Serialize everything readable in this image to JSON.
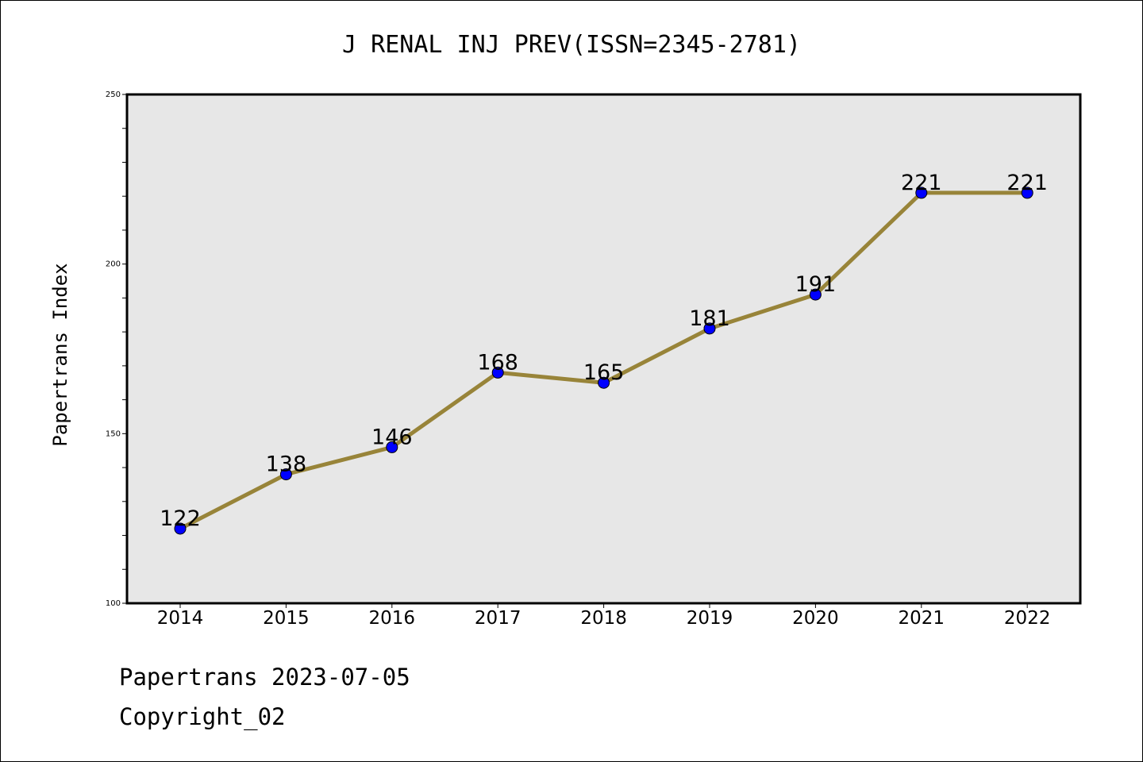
{
  "chart_data": {
    "type": "line",
    "title": "J RENAL INJ PREV(ISSN=2345-2781)",
    "xlabel": "",
    "ylabel": "Papertrans Index",
    "categories": [
      "2014",
      "2015",
      "2016",
      "2017",
      "2018",
      "2019",
      "2020",
      "2021",
      "2022"
    ],
    "series": [
      {
        "values": [
          122,
          138,
          146,
          168,
          165,
          181,
          191,
          221,
          221
        ]
      }
    ],
    "data_labels": [
      "122",
      "138",
      "146",
      "168",
      "165",
      "181",
      "191",
      "221",
      "221"
    ],
    "ylim": [
      100,
      250
    ],
    "yticks": [
      "100",
      "150",
      "200",
      "250"
    ],
    "grid": false,
    "colors": {
      "line": "#988439",
      "marker": "#0000ff",
      "plot_background": "#e7e7e7"
    }
  },
  "footer": {
    "line1": "Papertrans 2023-07-05",
    "line2": "Copyright_02"
  }
}
